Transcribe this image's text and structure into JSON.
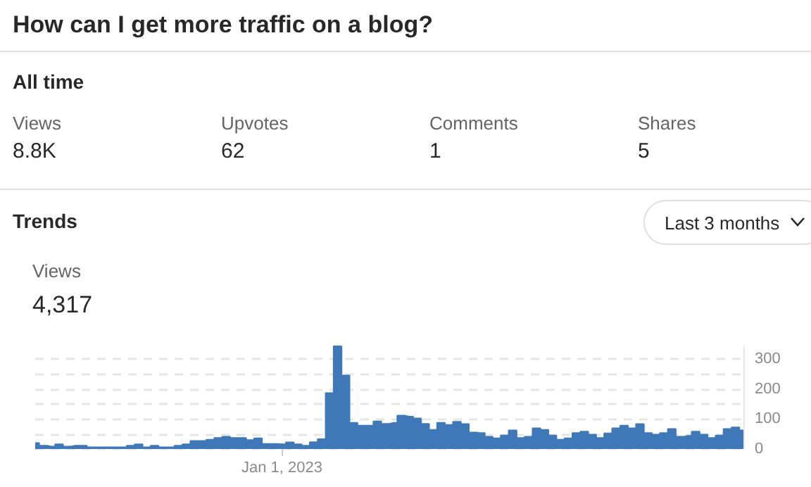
{
  "chart_data": {
    "type": "area",
    "title": "How can I get more traffic on a blog?",
    "annotations": [
      "All time",
      "Views",
      "8.8K",
      "Upvotes",
      "62",
      "Comments",
      "1",
      "Shares",
      "5",
      "Trends",
      "Last 3 months",
      "Views",
      "4,317"
    ],
    "categories": [
      null,
      null,
      null,
      null,
      null,
      null,
      null,
      null,
      null,
      null,
      null,
      null,
      null,
      null,
      null,
      null,
      null,
      null,
      null,
      null,
      null,
      null,
      null,
      null,
      null,
      null,
      null,
      null,
      null,
      null,
      null,
      "Jan 1, 2023",
      null,
      null,
      null,
      null,
      null,
      null,
      null,
      null,
      null,
      null,
      null,
      null,
      null,
      null,
      null,
      null,
      null,
      null,
      null,
      null,
      null,
      null,
      null,
      null,
      null,
      null,
      null,
      null,
      null,
      null,
      null,
      null,
      null,
      null,
      null,
      null,
      null,
      null,
      null,
      null,
      null,
      null,
      null,
      null,
      null,
      null,
      null,
      null,
      null,
      null,
      null,
      null,
      null,
      null,
      null,
      null,
      null,
      null
    ],
    "series": [
      {
        "color": "#3f78b8",
        "values": [
          20,
          11,
          8,
          16,
          8,
          11,
          11,
          6,
          6,
          6,
          6,
          6,
          11,
          16,
          6,
          11,
          6,
          6,
          11,
          16,
          27,
          27,
          31,
          37,
          41,
          37,
          37,
          30,
          36,
          17,
          17,
          16,
          22,
          16,
          11,
          23,
          33,
          186,
          342,
          245,
          87,
          78,
          78,
          92,
          84,
          87,
          111,
          108,
          102,
          84,
          64,
          87,
          80,
          91,
          83,
          55,
          53,
          41,
          36,
          45,
          62,
          37,
          41,
          69,
          64,
          45,
          31,
          36,
          53,
          58,
          48,
          37,
          52,
          69,
          78,
          69,
          83,
          53,
          48,
          53,
          67,
          41,
          44,
          58,
          48,
          37,
          45,
          67,
          72,
          62
        ]
      }
    ],
    "ylim": [
      0,
      342
    ],
    "yticks": [
      0,
      {
        "value": 50,
        "label": null
      },
      100,
      {
        "value": 150,
        "label": null
      },
      200,
      {
        "value": 250,
        "label": null
      },
      300
    ],
    "grid": "y"
  }
}
